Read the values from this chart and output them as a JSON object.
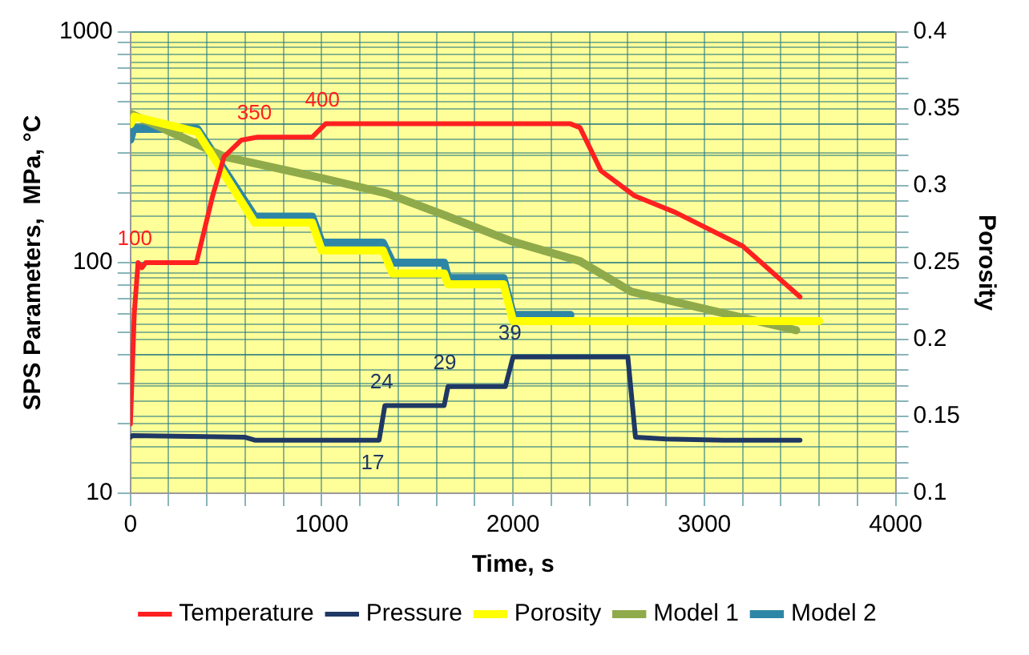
{
  "chart_data": {
    "type": "line",
    "xlabel": "Time, s",
    "ylabel": "SPS Parameters,  MPa, °C",
    "y2label": "Porosity",
    "xlim": [
      0,
      4000
    ],
    "xticks": [
      0,
      {
        "value": 200,
        "label": null
      },
      {
        "value": 400,
        "label": null
      },
      {
        "value": 600,
        "label": null
      },
      {
        "value": 800,
        "label": null
      },
      1000,
      {
        "value": 1200,
        "label": null
      },
      {
        "value": 1400,
        "label": null
      },
      {
        "value": 1600,
        "label": null
      },
      {
        "value": 1800,
        "label": null
      },
      2000,
      {
        "value": 2200,
        "label": null
      },
      {
        "value": 2400,
        "label": null
      },
      {
        "value": 2600,
        "label": null
      },
      {
        "value": 2800,
        "label": null
      },
      3000,
      {
        "value": 3200,
        "label": null
      },
      {
        "value": 3400,
        "label": null
      },
      {
        "value": 3600,
        "label": null
      },
      {
        "value": 3800,
        "label": null
      },
      4000
    ],
    "log": "y",
    "ylim": [
      10,
      1000
    ],
    "yticks": [
      10,
      {
        "value": 20,
        "label": null
      },
      {
        "value": 30,
        "label": null
      },
      {
        "value": 40,
        "label": null
      },
      {
        "value": 50,
        "label": null
      },
      {
        "value": 60,
        "label": null
      },
      {
        "value": 70,
        "label": null
      },
      {
        "value": 80,
        "label": null
      },
      {
        "value": 90,
        "label": null
      },
      100,
      {
        "value": 200,
        "label": null
      },
      {
        "value": 300,
        "label": null
      },
      {
        "value": 400,
        "label": null
      },
      {
        "value": 500,
        "label": null
      },
      {
        "value": 600,
        "label": null
      },
      {
        "value": 700,
        "label": null
      },
      {
        "value": 800,
        "label": null
      },
      {
        "value": 900,
        "label": null
      },
      1000
    ],
    "y2lim": [
      0.1,
      0.4
    ],
    "y2ticks": [
      0.1,
      {
        "value": 0.11,
        "label": null
      },
      {
        "value": 0.12,
        "label": null
      },
      {
        "value": 0.13,
        "label": null
      },
      {
        "value": 0.14,
        "label": null
      },
      0.15,
      {
        "value": 0.16,
        "label": null
      },
      {
        "value": 0.17,
        "label": null
      },
      {
        "value": 0.18,
        "label": null
      },
      {
        "value": 0.19,
        "label": null
      },
      0.2,
      {
        "value": 0.21,
        "label": null
      },
      {
        "value": 0.22,
        "label": null
      },
      {
        "value": 0.23,
        "label": null
      },
      {
        "value": 0.24,
        "label": null
      },
      0.25,
      {
        "value": 0.26,
        "label": null
      },
      {
        "value": 0.27,
        "label": null
      },
      {
        "value": 0.28,
        "label": null
      },
      {
        "value": 0.29,
        "label": null
      },
      0.3,
      {
        "value": 0.31,
        "label": null
      },
      {
        "value": 0.32,
        "label": null
      },
      {
        "value": 0.33,
        "label": null
      },
      {
        "value": 0.34,
        "label": null
      },
      0.35,
      {
        "value": 0.36,
        "label": null
      },
      {
        "value": 0.37,
        "label": null
      },
      {
        "value": 0.38,
        "label": null
      },
      {
        "value": 0.39,
        "label": null
      },
      0.4
    ],
    "grid": true,
    "legend": "bottom",
    "marker": "none",
    "line_style": "solid",
    "series": [
      {
        "name": "Temperature",
        "color": "#ff2020",
        "x": [
          0,
          20,
          40,
          60,
          80,
          345,
          430,
          490,
          580,
          665,
          950,
          1020,
          2300,
          2350,
          2460,
          2635,
          2850,
          3200,
          3500
        ],
        "values": [
          20,
          60,
          100,
          95,
          100,
          100,
          195,
          288,
          340,
          350,
          350,
          400,
          400,
          385,
          250,
          195,
          165,
          118,
          71
        ],
        "value_labels": [
          null,
          null,
          "100",
          null,
          null,
          null,
          null,
          null,
          null,
          "350",
          null,
          "400",
          null,
          null,
          null,
          null,
          null,
          null,
          null
        ]
      },
      {
        "name": "Pressure",
        "color": "#1f3864",
        "x": [
          0,
          10,
          600,
          650,
          1300,
          1330,
          1640,
          1660,
          1960,
          2000,
          2600,
          2640,
          2800,
          3100,
          3500
        ],
        "values": [
          17.5,
          17.8,
          17.5,
          17,
          17,
          24,
          24,
          29,
          29,
          39,
          39,
          17.5,
          17.2,
          17,
          17
        ],
        "value_labels": [
          null,
          null,
          null,
          null,
          "17",
          "24",
          null,
          "29",
          null,
          "39",
          null,
          null,
          null,
          null,
          null
        ]
      },
      {
        "name": "Porosity",
        "color": "#ffff00",
        "axis": "y2",
        "x": [
          0,
          20,
          350,
          650,
          950,
          1000,
          1320,
          1370,
          1640,
          1660,
          1950,
          2000,
          3600
        ],
        "values": [
          0.34,
          0.345,
          0.335,
          0.276,
          0.276,
          0.258,
          0.258,
          0.243,
          0.243,
          0.236,
          0.236,
          0.212,
          0.212
        ]
      },
      {
        "name": "Model 1",
        "color": "#8faa4a",
        "axis": "y2",
        "x": [
          0,
          490,
          1000,
          1340,
          1640,
          1990,
          2350,
          2620,
          3480
        ],
        "values": [
          0.347,
          0.319,
          0.305,
          0.295,
          0.281,
          0.264,
          0.251,
          0.231,
          0.206
        ]
      },
      {
        "name": "Model 2",
        "color": "#2e86a6",
        "axis": "y2",
        "x": [
          0,
          15,
          350,
          650,
          950,
          1000,
          1320,
          1370,
          1640,
          1660,
          1950,
          2000,
          2300
        ],
        "values": [
          0.33,
          0.337,
          0.337,
          0.28,
          0.28,
          0.263,
          0.263,
          0.25,
          0.25,
          0.24,
          0.24,
          0.216,
          0.216
        ]
      }
    ]
  }
}
